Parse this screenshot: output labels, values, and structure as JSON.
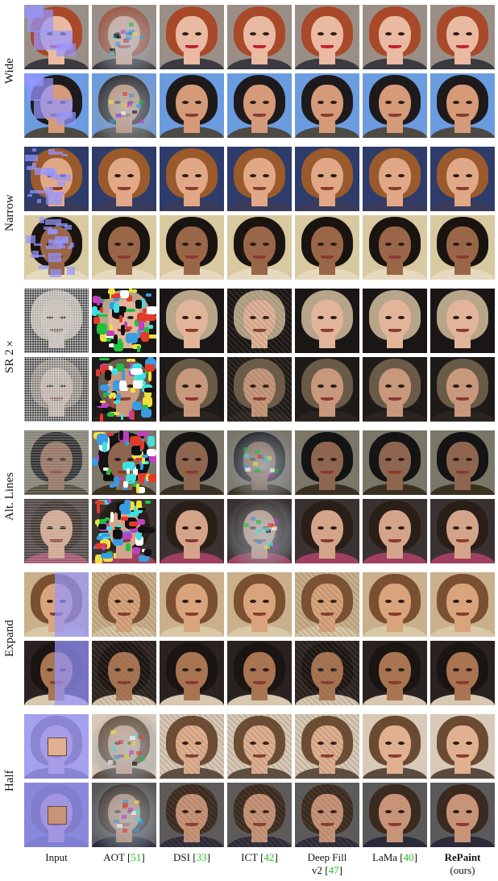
{
  "columns": [
    {
      "main": "Input",
      "ref": "",
      "sub": ""
    },
    {
      "main": "AOT ",
      "ref": "51",
      "sub": ""
    },
    {
      "main": "DSI ",
      "ref": "33",
      "sub": ""
    },
    {
      "main": "ICT ",
      "ref": "42",
      "sub": ""
    },
    {
      "main": "Deep Fill",
      "ref": "47",
      "sub": "v2 "
    },
    {
      "main": "LaMa ",
      "ref": "40",
      "sub": ""
    },
    {
      "main": "RePaint",
      "ref": "",
      "sub": "(ours)"
    }
  ],
  "groups": [
    {
      "label": "Wide"
    },
    {
      "label": "Narrow"
    },
    {
      "label": "SR 2×"
    },
    {
      "label": "Alt. Lines"
    },
    {
      "label": "Expand"
    },
    {
      "label": "Half"
    }
  ],
  "colors": {
    "mask": "#9696ff",
    "citation": "#22c322"
  }
}
